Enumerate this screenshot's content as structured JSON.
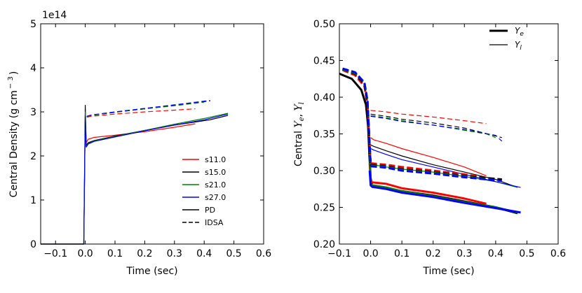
{
  "chart_data": [
    {
      "type": "line",
      "title": "",
      "xlabel": "Time (sec)",
      "ylabel": "Central Density (g cm$^{-3}$)",
      "ylabel_text": "Central Density (g cm",
      "ylabel_sup": "− 3",
      "ylabel_close": ")",
      "y_offset_label": "1e14",
      "xlim": [
        -0.15,
        0.6
      ],
      "ylim": [
        0,
        5
      ],
      "xticks": [
        -0.1,
        0.0,
        0.1,
        0.2,
        0.3,
        0.4,
        0.5,
        0.6
      ],
      "xtick_labels": [
        "−0.1",
        "0.0",
        "0.1",
        "0.2",
        "0.3",
        "0.4",
        "0.5",
        "0.6"
      ],
      "yticks": [
        0,
        1,
        2,
        3,
        4,
        5
      ],
      "ytick_labels": [
        "0",
        "1",
        "2",
        "3",
        "4",
        "5"
      ],
      "grid": false,
      "legend_position": "bottom-right",
      "legend": [
        {
          "label": "s11.0",
          "color": "#ff0000",
          "style": "solid"
        },
        {
          "label": "s15.0",
          "color": "#000000",
          "style": "solid"
        },
        {
          "label": "s21.0",
          "color": "#008000",
          "style": "solid"
        },
        {
          "label": "s27.0",
          "color": "#0000ff",
          "style": "solid"
        },
        {
          "label": "PD",
          "color": "#000000",
          "style": "solid"
        },
        {
          "label": "IDSA",
          "color": "#000000",
          "style": "dashed"
        }
      ],
      "series": [
        {
          "name": "s11.0",
          "method": "PD",
          "color": "#ff0000",
          "dash": false,
          "x": [
            -0.15,
            -0.005,
            0.0,
            0.003,
            0.01,
            0.03,
            0.1,
            0.2,
            0.3,
            0.37
          ],
          "y": [
            0,
            0,
            2.95,
            2.3,
            2.38,
            2.42,
            2.47,
            2.55,
            2.65,
            2.73
          ]
        },
        {
          "name": "s15.0",
          "method": "PD",
          "color": "#000000",
          "dash": false,
          "x": [
            -0.15,
            -0.005,
            0.0,
            0.003,
            0.01,
            0.03,
            0.1,
            0.2,
            0.3,
            0.42,
            0.48
          ],
          "y": [
            0,
            0,
            3.15,
            2.25,
            2.3,
            2.35,
            2.45,
            2.58,
            2.7,
            2.82,
            2.92
          ]
        },
        {
          "name": "s21.0",
          "method": "PD",
          "color": "#008000",
          "dash": false,
          "x": [
            -0.15,
            -0.005,
            0.0,
            0.003,
            0.01,
            0.03,
            0.1,
            0.2,
            0.3,
            0.4,
            0.48
          ],
          "y": [
            0,
            0,
            3.0,
            2.22,
            2.28,
            2.34,
            2.44,
            2.58,
            2.72,
            2.85,
            2.97
          ]
        },
        {
          "name": "s27.0",
          "method": "PD",
          "color": "#0000ff",
          "dash": false,
          "x": [
            -0.15,
            -0.005,
            0.0,
            0.003,
            0.01,
            0.03,
            0.1,
            0.2,
            0.3,
            0.4,
            0.48
          ],
          "y": [
            0,
            0,
            2.9,
            2.2,
            2.27,
            2.33,
            2.43,
            2.57,
            2.7,
            2.82,
            2.95
          ]
        },
        {
          "name": "s11.0",
          "method": "IDSA",
          "color": "#ff0000",
          "dash": true,
          "x": [
            0.005,
            0.02,
            0.1,
            0.2,
            0.3,
            0.37
          ],
          "y": [
            2.88,
            2.9,
            2.95,
            3.0,
            3.04,
            3.07
          ]
        },
        {
          "name": "s15.0",
          "method": "IDSA",
          "color": "#000000",
          "dash": true,
          "x": [
            0.005,
            0.02,
            0.1,
            0.2,
            0.3,
            0.42
          ],
          "y": [
            2.9,
            2.92,
            2.99,
            3.07,
            3.15,
            3.25
          ]
        },
        {
          "name": "s21.0",
          "method": "IDSA",
          "color": "#008000",
          "dash": true,
          "x": [
            0.005,
            0.02,
            0.1,
            0.2,
            0.3,
            0.4
          ],
          "y": [
            2.9,
            2.92,
            2.99,
            3.07,
            3.14,
            3.22
          ]
        },
        {
          "name": "s27.0",
          "method": "IDSA",
          "color": "#0000ff",
          "dash": true,
          "x": [
            0.005,
            0.02,
            0.1,
            0.2,
            0.3,
            0.42
          ],
          "y": [
            2.9,
            2.93,
            3.0,
            3.08,
            3.16,
            3.26
          ]
        }
      ]
    },
    {
      "type": "line",
      "title": "",
      "xlabel": "Time (sec)",
      "ylabel": "Central Y_e, Y_l",
      "ylabel_prefix": "Central ",
      "ylabel_ye": "Y",
      "ylabel_ye_sub": "e",
      "ylabel_sep": ", ",
      "ylabel_yl": "Y",
      "ylabel_yl_sub": "l",
      "xlim": [
        -0.1,
        0.6
      ],
      "ylim": [
        0.2,
        0.5
      ],
      "xticks": [
        -0.1,
        0.0,
        0.1,
        0.2,
        0.3,
        0.4,
        0.5,
        0.6
      ],
      "xtick_labels": [
        "−0.1",
        "0.0",
        "0.1",
        "0.2",
        "0.3",
        "0.4",
        "0.5",
        "0.6"
      ],
      "yticks": [
        0.2,
        0.25,
        0.3,
        0.35,
        0.4,
        0.45,
        0.5
      ],
      "ytick_labels": [
        "0.20",
        "0.25",
        "0.30",
        "0.35",
        "0.40",
        "0.45",
        "0.50"
      ],
      "grid": false,
      "legend_position": "top-right",
      "legend": [
        {
          "label": "Y",
          "sub": "e",
          "color": "#000000",
          "width": 3
        },
        {
          "label": "Y",
          "sub": "l",
          "color": "#000000",
          "width": 1.2
        }
      ],
      "series": [
        {
          "name": "s15.0",
          "quantity": "Ye",
          "method": "PD",
          "color": "#000000",
          "dash": false,
          "width": 3,
          "x": [
            -0.1,
            -0.06,
            -0.03,
            -0.015,
            -0.008,
            -0.004,
            0.0,
            0.005,
            0.05,
            0.1,
            0.2,
            0.3,
            0.4,
            0.47
          ],
          "y": [
            0.432,
            0.425,
            0.41,
            0.39,
            0.36,
            0.32,
            0.29,
            0.278,
            0.276,
            0.272,
            0.266,
            0.258,
            0.25,
            0.242
          ]
        },
        {
          "name": "s11.0",
          "quantity": "Ye",
          "method": "PD",
          "color": "#ff0000",
          "dash": false,
          "width": 3,
          "x": [
            -0.003,
            0.0,
            0.005,
            0.05,
            0.1,
            0.2,
            0.3,
            0.37
          ],
          "y": [
            0.31,
            0.286,
            0.284,
            0.282,
            0.276,
            0.27,
            0.262,
            0.255
          ]
        },
        {
          "name": "s21.0",
          "quantity": "Ye",
          "method": "PD",
          "color": "#008000",
          "dash": false,
          "width": 3,
          "x": [
            -0.003,
            0.0,
            0.005,
            0.05,
            0.1,
            0.2,
            0.3,
            0.4,
            0.47
          ],
          "y": [
            0.33,
            0.282,
            0.28,
            0.277,
            0.272,
            0.265,
            0.257,
            0.25,
            0.243
          ]
        },
        {
          "name": "s27.0",
          "quantity": "Ye",
          "method": "PD",
          "color": "#0000ff",
          "dash": false,
          "width": 3,
          "x": [
            -0.003,
            0.0,
            0.005,
            0.05,
            0.1,
            0.2,
            0.3,
            0.4,
            0.48
          ],
          "y": [
            0.3,
            0.28,
            0.278,
            0.275,
            0.27,
            0.264,
            0.256,
            0.249,
            0.243
          ]
        },
        {
          "name": "s11.0",
          "quantity": "Yl",
          "method": "PD",
          "color": "#ff0000",
          "dash": false,
          "width": 1.2,
          "x": [
            0.0,
            0.01,
            0.05,
            0.1,
            0.2,
            0.3,
            0.37
          ],
          "y": [
            0.345,
            0.342,
            0.337,
            0.33,
            0.318,
            0.305,
            0.293
          ]
        },
        {
          "name": "s15.0",
          "quantity": "Yl",
          "method": "PD",
          "color": "#000000",
          "dash": false,
          "width": 1.2,
          "x": [
            0.0,
            0.01,
            0.05,
            0.1,
            0.2,
            0.3,
            0.4,
            0.47
          ],
          "y": [
            0.335,
            0.333,
            0.327,
            0.32,
            0.308,
            0.298,
            0.288,
            0.277
          ]
        },
        {
          "name": "s21.0",
          "quantity": "Yl",
          "method": "PD",
          "color": "#008000",
          "dash": false,
          "width": 1.2,
          "x": [
            -0.003,
            0.0,
            0.01,
            0.05,
            0.1,
            0.2,
            0.3,
            0.4,
            0.47
          ],
          "y": [
            0.34,
            0.31,
            0.308,
            0.305,
            0.302,
            0.298,
            0.292,
            0.285,
            0.277
          ]
        },
        {
          "name": "s27.0",
          "quantity": "Yl",
          "method": "PD",
          "color": "#0000ff",
          "dash": false,
          "width": 1.2,
          "x": [
            0.0,
            0.01,
            0.05,
            0.1,
            0.2,
            0.3,
            0.4,
            0.48
          ],
          "y": [
            0.33,
            0.328,
            0.322,
            0.315,
            0.305,
            0.295,
            0.285,
            0.277
          ]
        },
        {
          "name": "s11.0",
          "quantity": "Ye",
          "method": "IDSA",
          "color": "#ff0000",
          "dash": true,
          "width": 3,
          "x": [
            -0.09,
            -0.05,
            -0.02,
            -0.01,
            -0.005,
            0.0
          ],
          "y": [
            0.437,
            0.43,
            0.415,
            0.39,
            0.35,
            0.31
          ]
        },
        {
          "name": "s15.0",
          "quantity": "Ye",
          "method": "IDSA",
          "color": "#000000",
          "dash": true,
          "width": 3,
          "x": [
            -0.09,
            -0.05,
            -0.02,
            -0.01,
            -0.005,
            0.0
          ],
          "y": [
            0.438,
            0.432,
            0.418,
            0.392,
            0.35,
            0.308
          ]
        },
        {
          "name": "s21.0",
          "quantity": "Ye",
          "method": "IDSA",
          "color": "#008000",
          "dash": true,
          "width": 3,
          "x": [
            -0.09,
            -0.05,
            -0.02,
            -0.01,
            -0.005,
            0.0
          ],
          "y": [
            0.438,
            0.433,
            0.42,
            0.395,
            0.352,
            0.307
          ]
        },
        {
          "name": "s27.0",
          "quantity": "Ye",
          "method": "IDSA",
          "color": "#0000ff",
          "dash": true,
          "width": 3,
          "x": [
            -0.09,
            -0.05,
            -0.02,
            -0.01,
            -0.005,
            0.0
          ],
          "y": [
            0.439,
            0.434,
            0.42,
            0.395,
            0.352,
            0.306
          ]
        },
        {
          "name": "s11.0",
          "quantity": "Yl",
          "method": "IDSA",
          "color": "#ff0000",
          "dash": true,
          "width": 1.2,
          "x": [
            0.0,
            0.05,
            0.1,
            0.2,
            0.3,
            0.37
          ],
          "y": [
            0.382,
            0.38,
            0.377,
            0.373,
            0.368,
            0.364
          ]
        },
        {
          "name": "s15.0",
          "quantity": "Yl",
          "method": "IDSA",
          "color": "#000000",
          "dash": true,
          "width": 1.2,
          "x": [
            0.0,
            0.05,
            0.1,
            0.2,
            0.3,
            0.42
          ],
          "y": [
            0.377,
            0.374,
            0.37,
            0.365,
            0.358,
            0.345
          ]
        },
        {
          "name": "s21.0",
          "quantity": "Yl",
          "method": "IDSA",
          "color": "#008000",
          "dash": true,
          "width": 1.2,
          "x": [
            0.0,
            0.05,
            0.1,
            0.2,
            0.3,
            0.37,
            0.4
          ],
          "y": [
            0.375,
            0.372,
            0.368,
            0.362,
            0.355,
            0.35,
            0.345
          ]
        },
        {
          "name": "s27.0",
          "quantity": "Yl",
          "method": "IDSA",
          "color": "#0000ff",
          "dash": true,
          "width": 1.2,
          "x": [
            0.0,
            0.05,
            0.1,
            0.2,
            0.3,
            0.4,
            0.42
          ],
          "y": [
            0.374,
            0.371,
            0.367,
            0.362,
            0.356,
            0.348,
            0.34
          ]
        },
        {
          "name": "s11.0",
          "quantity": "Ye",
          "method": "IDSA-post",
          "color": "#ff0000",
          "dash": true,
          "width": 3,
          "x": [
            0.0,
            0.05,
            0.1,
            0.2,
            0.3,
            0.37
          ],
          "y": [
            0.31,
            0.308,
            0.305,
            0.3,
            0.295,
            0.29
          ]
        },
        {
          "name": "s15.0",
          "quantity": "Ye",
          "method": "IDSA-post",
          "color": "#000000",
          "dash": true,
          "width": 3,
          "x": [
            0.0,
            0.05,
            0.1,
            0.2,
            0.3,
            0.42
          ],
          "y": [
            0.308,
            0.306,
            0.302,
            0.298,
            0.293,
            0.288
          ]
        },
        {
          "name": "s21.0",
          "quantity": "Ye",
          "method": "IDSA-post",
          "color": "#008000",
          "dash": true,
          "width": 3,
          "x": [
            0.0,
            0.05,
            0.1,
            0.2,
            0.3,
            0.4
          ],
          "y": [
            0.307,
            0.305,
            0.301,
            0.297,
            0.292,
            0.287
          ]
        },
        {
          "name": "s27.0",
          "quantity": "Ye",
          "method": "IDSA-post",
          "color": "#0000ff",
          "dash": true,
          "width": 3,
          "x": [
            0.0,
            0.05,
            0.1,
            0.2,
            0.3,
            0.42
          ],
          "y": [
            0.306,
            0.304,
            0.3,
            0.296,
            0.291,
            0.286
          ]
        }
      ]
    }
  ]
}
